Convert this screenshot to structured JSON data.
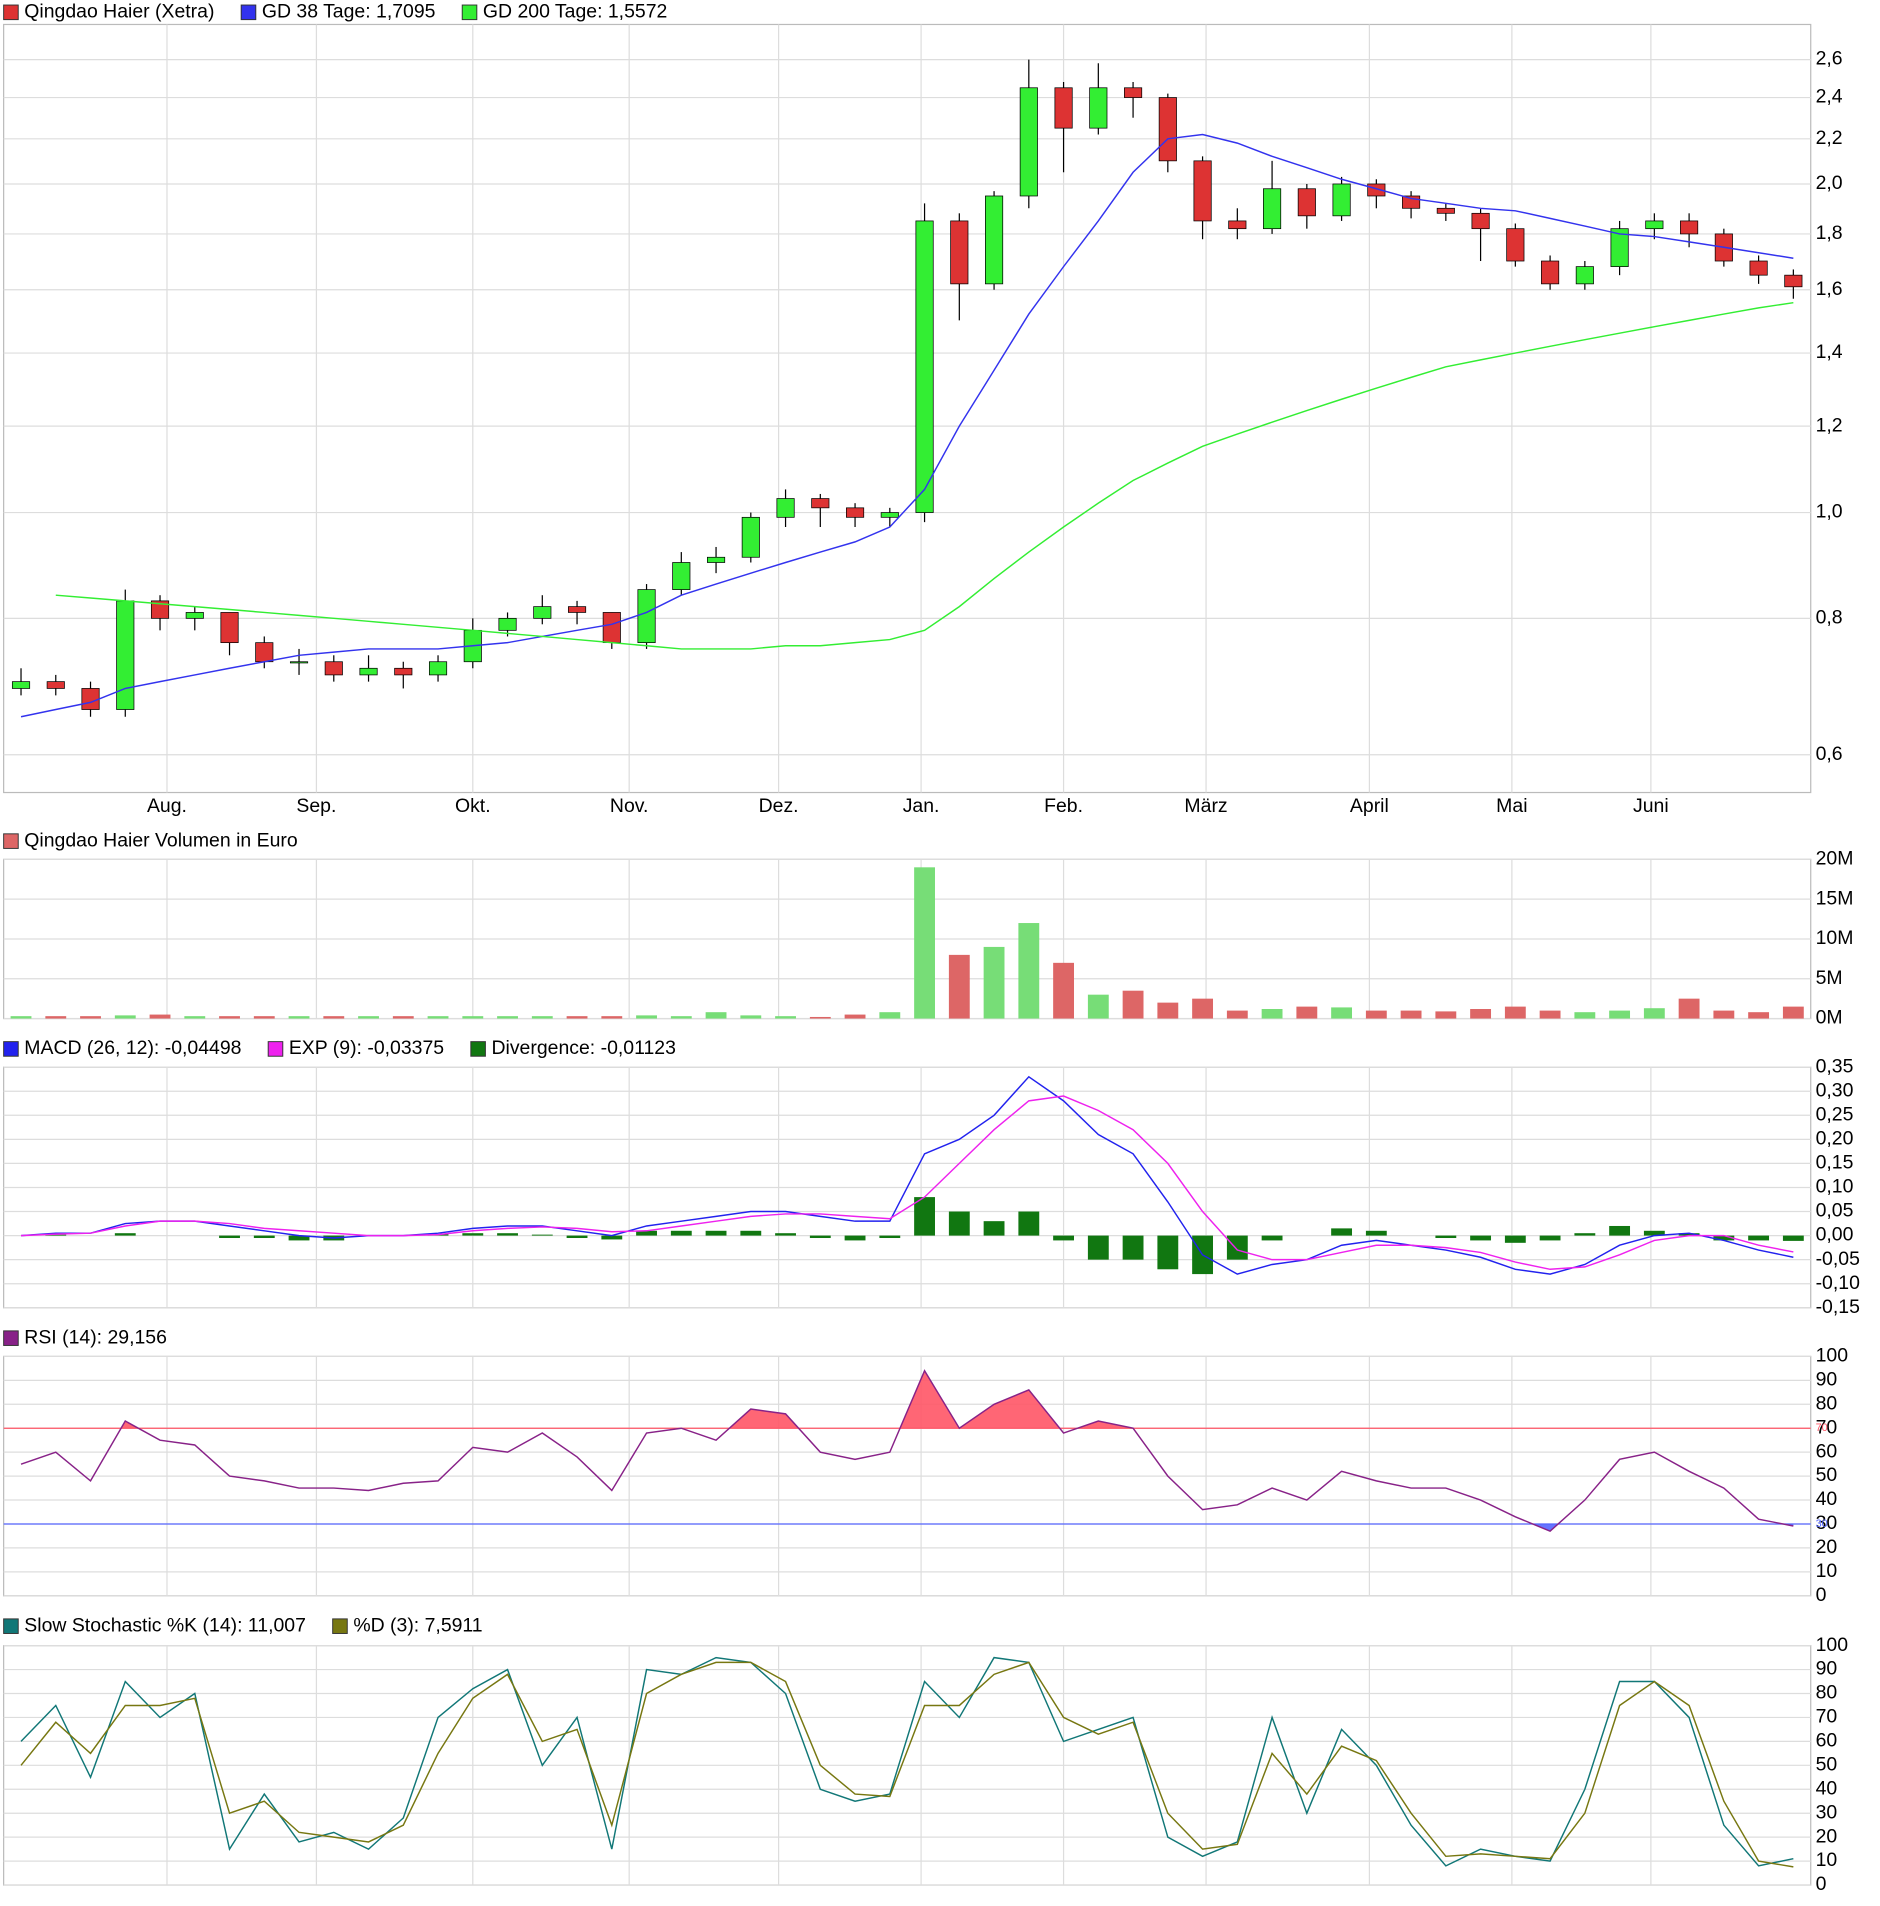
{
  "chart_data": [
    {
      "type": "candlestick",
      "log_scale": true,
      "grid": true,
      "xlim": [
        0,
        52
      ],
      "xticks": [
        {
          "value": 4.7,
          "label": "Aug."
        },
        {
          "value": 9.0,
          "label": "Sep."
        },
        {
          "value": 13.5,
          "label": "Okt."
        },
        {
          "value": 18.0,
          "label": "Nov."
        },
        {
          "value": 22.3,
          "label": "Dez."
        },
        {
          "value": 26.4,
          "label": "Jan."
        },
        {
          "value": 30.5,
          "label": "Feb."
        },
        {
          "value": 34.6,
          "label": "März"
        },
        {
          "value": 39.3,
          "label": "April"
        },
        {
          "value": 43.4,
          "label": "Mai"
        },
        {
          "value": 47.4,
          "label": "Juni"
        }
      ],
      "ylim": [
        0.554,
        2.8
      ],
      "yticks": [
        {
          "value": 0.6,
          "label": "0,6"
        },
        {
          "value": 0.8,
          "label": "0,8"
        },
        {
          "value": 1.0,
          "label": "1,0"
        },
        {
          "value": 1.2,
          "label": "1,2"
        },
        {
          "value": 1.4,
          "label": "1,4"
        },
        {
          "value": 1.6,
          "label": "1,6"
        },
        {
          "value": 1.8,
          "label": "1,8"
        },
        {
          "value": 2.0,
          "label": "2,0"
        },
        {
          "value": 2.2,
          "label": "2,2"
        },
        {
          "value": 2.4,
          "label": "2,4"
        },
        {
          "value": 2.6,
          "label": "2,6"
        }
      ],
      "series": [
        {
          "name": "Qingdao Haier (Xetra)",
          "type": "candlestick",
          "color": "#dd3333",
          "up_color": "#33ee33",
          "open": [
            0.69,
            0.7,
            0.69,
            0.66,
            0.83,
            0.8,
            0.81,
            0.76,
            0.73,
            0.73,
            0.71,
            0.72,
            0.71,
            0.73,
            0.78,
            0.8,
            0.82,
            0.81,
            0.76,
            0.85,
            0.9,
            0.91,
            0.99,
            1.03,
            1.01,
            0.99,
            1.0,
            1.85,
            1.62,
            1.95,
            2.45,
            2.25,
            2.45,
            2.4,
            2.1,
            1.85,
            1.82,
            1.98,
            1.87,
            2.0,
            1.95,
            1.9,
            1.88,
            1.82,
            1.7,
            1.62,
            1.68,
            1.82,
            1.85,
            1.8,
            1.7,
            1.65
          ],
          "high": [
            0.72,
            0.71,
            0.7,
            0.85,
            0.84,
            0.82,
            0.81,
            0.77,
            0.75,
            0.74,
            0.74,
            0.73,
            0.74,
            0.8,
            0.81,
            0.84,
            0.83,
            0.81,
            0.86,
            0.92,
            0.93,
            1.0,
            1.05,
            1.04,
            1.02,
            1.01,
            1.92,
            1.88,
            1.97,
            2.6,
            2.48,
            2.58,
            2.48,
            2.42,
            2.12,
            1.9,
            2.1,
            2.0,
            2.03,
            2.02,
            1.97,
            1.92,
            1.9,
            1.84,
            1.72,
            1.7,
            1.85,
            1.88,
            1.88,
            1.82,
            1.72,
            1.67
          ],
          "low": [
            0.68,
            0.68,
            0.65,
            0.65,
            0.78,
            0.78,
            0.74,
            0.72,
            0.71,
            0.7,
            0.7,
            0.69,
            0.7,
            0.72,
            0.77,
            0.79,
            0.79,
            0.75,
            0.75,
            0.84,
            0.88,
            0.9,
            0.97,
            0.97,
            0.97,
            0.97,
            0.98,
            1.5,
            1.6,
            1.9,
            2.05,
            2.22,
            2.3,
            2.05,
            1.78,
            1.78,
            1.8,
            1.82,
            1.85,
            1.9,
            1.86,
            1.85,
            1.7,
            1.68,
            1.6,
            1.6,
            1.65,
            1.78,
            1.75,
            1.68,
            1.62,
            1.57
          ],
          "close": [
            0.7,
            0.69,
            0.66,
            0.83,
            0.8,
            0.81,
            0.76,
            0.73,
            0.73,
            0.71,
            0.72,
            0.71,
            0.73,
            0.78,
            0.8,
            0.82,
            0.81,
            0.76,
            0.85,
            0.9,
            0.91,
            0.99,
            1.03,
            1.01,
            0.99,
            1.0,
            1.85,
            1.62,
            1.95,
            2.45,
            2.25,
            2.45,
            2.4,
            2.1,
            1.85,
            1.82,
            1.98,
            1.87,
            2.0,
            1.95,
            1.9,
            1.88,
            1.82,
            1.7,
            1.62,
            1.68,
            1.82,
            1.85,
            1.8,
            1.7,
            1.65,
            1.61
          ]
        },
        {
          "name": "GD 38 Tage: 1,7095",
          "type": "line",
          "color": "#3333ee",
          "values": [
            0.65,
            0.66,
            0.67,
            0.69,
            0.7,
            0.71,
            0.72,
            0.73,
            0.74,
            0.745,
            0.75,
            0.75,
            0.75,
            0.755,
            0.76,
            0.77,
            0.78,
            0.79,
            0.81,
            0.84,
            0.86,
            0.88,
            0.9,
            0.92,
            0.94,
            0.97,
            1.05,
            1.2,
            1.35,
            1.52,
            1.68,
            1.85,
            2.05,
            2.2,
            2.22,
            2.18,
            2.12,
            2.07,
            2.02,
            1.98,
            1.94,
            1.92,
            1.9,
            1.89,
            1.86,
            1.83,
            1.8,
            1.79,
            1.77,
            1.75,
            1.73,
            1.71
          ]
        },
        {
          "name": "GD 200 Tage: 1,5572",
          "type": "line",
          "color": "#33ee33",
          "values": [
            null,
            0.84,
            0.835,
            0.83,
            0.825,
            0.82,
            0.815,
            0.81,
            0.805,
            0.8,
            0.795,
            0.79,
            0.785,
            0.78,
            0.775,
            0.77,
            0.765,
            0.76,
            0.755,
            0.75,
            0.75,
            0.75,
            0.755,
            0.755,
            0.76,
            0.765,
            0.78,
            0.82,
            0.87,
            0.92,
            0.97,
            1.02,
            1.07,
            1.11,
            1.15,
            1.18,
            1.21,
            1.24,
            1.27,
            1.3,
            1.33,
            1.36,
            1.38,
            1.4,
            1.42,
            1.44,
            1.46,
            1.48,
            1.5,
            1.52,
            1.54,
            1.557
          ]
        }
      ]
    },
    {
      "type": "bar",
      "grid": true,
      "ylim": [
        0,
        20
      ],
      "yticks": [
        {
          "value": 0,
          "label": "0M"
        },
        {
          "value": 5,
          "label": "5M"
        },
        {
          "value": 10,
          "label": "10M"
        },
        {
          "value": 15,
          "label": "15M"
        },
        {
          "value": 20,
          "label": "20M"
        }
      ],
      "series": [
        {
          "name": "Qingdao Haier Volumen in Euro",
          "type": "bar",
          "color": "#dd6666",
          "up_color": "#77dd77",
          "values": [
            0.3,
            0.3,
            0.3,
            0.4,
            0.5,
            0.3,
            0.3,
            0.3,
            0.3,
            0.3,
            0.3,
            0.3,
            0.3,
            0.3,
            0.3,
            0.3,
            0.3,
            0.3,
            0.4,
            0.3,
            0.8,
            0.4,
            0.3,
            0.2,
            0.5,
            0.8,
            19,
            8,
            9,
            12,
            7,
            3,
            3.5,
            2,
            2.5,
            1,
            1.2,
            1.5,
            1.4,
            1.0,
            1.0,
            0.9,
            1.2,
            1.5,
            1.0,
            0.8,
            1.0,
            1.3,
            2.5,
            1.0,
            0.8,
            1.5
          ]
        }
      ]
    },
    {
      "type": "macd",
      "grid": true,
      "ylim": [
        -0.15,
        0.35
      ],
      "yticks": [
        {
          "value": -0.15,
          "label": "-0,15"
        },
        {
          "value": -0.1,
          "label": "-0,10"
        },
        {
          "value": -0.05,
          "label": "-0,05"
        },
        {
          "value": 0,
          "label": "0,00"
        },
        {
          "value": 0.05,
          "label": "0,05"
        },
        {
          "value": 0.1,
          "label": "0,10"
        },
        {
          "value": 0.15,
          "label": "0,15"
        },
        {
          "value": 0.2,
          "label": "0,20"
        },
        {
          "value": 0.25,
          "label": "0,25"
        },
        {
          "value": 0.3,
          "label": "0,30"
        },
        {
          "value": 0.35,
          "label": "0,35"
        }
      ],
      "series": [
        {
          "name": "MACD (26, 12): -0,04498",
          "type": "line",
          "color": "#2222ee",
          "values": [
            0.0,
            0.005,
            0.005,
            0.025,
            0.03,
            0.03,
            0.02,
            0.01,
            0.0,
            -0.005,
            0.0,
            0.0,
            0.005,
            0.015,
            0.02,
            0.02,
            0.01,
            0.0,
            0.02,
            0.03,
            0.04,
            0.05,
            0.05,
            0.04,
            0.03,
            0.03,
            0.17,
            0.2,
            0.25,
            0.33,
            0.28,
            0.21,
            0.17,
            0.07,
            -0.04,
            -0.08,
            -0.06,
            -0.05,
            -0.02,
            -0.01,
            -0.02,
            -0.03,
            -0.045,
            -0.07,
            -0.08,
            -0.06,
            -0.02,
            0.0,
            0.005,
            -0.01,
            -0.03,
            -0.045
          ]
        },
        {
          "name": "EXP (9): -0,03375",
          "type": "line",
          "color": "#ee22ee",
          "values": [
            0.0,
            0.003,
            0.005,
            0.02,
            0.03,
            0.03,
            0.025,
            0.015,
            0.01,
            0.005,
            0.0,
            0.0,
            0.002,
            0.01,
            0.015,
            0.018,
            0.015,
            0.008,
            0.01,
            0.02,
            0.03,
            0.04,
            0.045,
            0.045,
            0.04,
            0.035,
            0.08,
            0.15,
            0.22,
            0.28,
            0.29,
            0.26,
            0.22,
            0.15,
            0.05,
            -0.03,
            -0.05,
            -0.05,
            -0.035,
            -0.02,
            -0.02,
            -0.025,
            -0.035,
            -0.055,
            -0.07,
            -0.065,
            -0.04,
            -0.01,
            0.0,
            0.0,
            -0.02,
            -0.034
          ]
        },
        {
          "name": "Divergence: -0,01123",
          "type": "bar",
          "color": "#117711",
          "values": [
            0,
            0.002,
            0,
            0.005,
            0,
            0,
            -0.005,
            -0.005,
            -0.01,
            -0.01,
            0,
            0,
            0.003,
            0.005,
            0.005,
            0.002,
            -0.005,
            -0.008,
            0.01,
            0.01,
            0.01,
            0.01,
            0.005,
            -0.005,
            -0.01,
            -0.005,
            0.08,
            0.05,
            0.03,
            0.05,
            -0.01,
            -0.05,
            -0.05,
            -0.07,
            -0.08,
            -0.05,
            -0.01,
            0.0,
            0.015,
            0.01,
            0.0,
            -0.005,
            -0.01,
            -0.015,
            -0.01,
            0.005,
            0.02,
            0.01,
            0.005,
            -0.01,
            -0.01,
            -0.011
          ]
        }
      ]
    },
    {
      "type": "line",
      "grid": true,
      "ylim": [
        0,
        100
      ],
      "yticks": [
        0,
        10,
        20,
        30,
        40,
        50,
        60,
        70,
        80,
        90,
        100
      ],
      "reference_lines": [
        {
          "value": 70,
          "color": "#ff5566",
          "fill": "above"
        },
        {
          "value": 30,
          "color": "#5566ff",
          "fill": "below"
        }
      ],
      "series": [
        {
          "name": "RSI (14): 29,156",
          "type": "line",
          "color": "#882288",
          "values": [
            55,
            60,
            48,
            73,
            65,
            63,
            50,
            48,
            45,
            45,
            44,
            47,
            48,
            62,
            60,
            68,
            58,
            44,
            68,
            70,
            65,
            78,
            76,
            60,
            57,
            60,
            94,
            70,
            80,
            86,
            68,
            73,
            70,
            50,
            36,
            38,
            45,
            40,
            52,
            48,
            45,
            45,
            40,
            33,
            27,
            40,
            57,
            60,
            52,
            45,
            32,
            29.156
          ]
        }
      ]
    },
    {
      "type": "line",
      "grid": true,
      "ylim": [
        0,
        100
      ],
      "yticks": [
        0,
        10,
        20,
        30,
        40,
        50,
        60,
        70,
        80,
        90,
        100
      ],
      "series": [
        {
          "name": "Slow Stochastic %K (14): 11,007",
          "type": "line",
          "color": "#117777",
          "values": [
            60,
            75,
            45,
            85,
            70,
            80,
            15,
            38,
            18,
            22,
            15,
            28,
            70,
            82,
            90,
            50,
            70,
            15,
            90,
            88,
            95,
            93,
            80,
            40,
            35,
            38,
            85,
            70,
            95,
            93,
            60,
            65,
            70,
            20,
            12,
            18,
            70,
            30,
            65,
            50,
            25,
            8,
            15,
            12,
            10,
            40,
            85,
            85,
            70,
            25,
            8,
            11.007
          ]
        },
        {
          "name": "%D (3): 7,5911",
          "type": "line",
          "color": "#777711",
          "values": [
            50,
            68,
            55,
            75,
            75,
            78,
            30,
            35,
            22,
            20,
            18,
            25,
            55,
            78,
            88,
            60,
            65,
            25,
            80,
            88,
            93,
            93,
            85,
            50,
            38,
            37,
            75,
            75,
            88,
            93,
            70,
            63,
            68,
            30,
            15,
            17,
            55,
            38,
            58,
            52,
            30,
            12,
            13,
            12,
            11,
            30,
            75,
            85,
            75,
            35,
            10,
            7.5911
          ]
        }
      ]
    }
  ]
}
